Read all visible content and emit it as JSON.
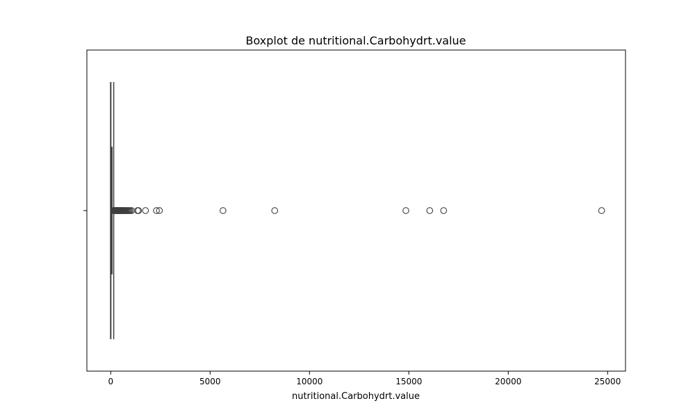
{
  "chart_data": {
    "type": "box",
    "orientation": "horizontal",
    "title": "Boxplot de nutritional.Carbohydrt.value",
    "xlabel": "nutritional.Carbohydrt.value",
    "ylabel": "",
    "xlim": [
      -1200,
      25900
    ],
    "xticks": [
      0,
      5000,
      10000,
      15000,
      20000,
      25000
    ],
    "grid": false,
    "box": {
      "min": 0,
      "q1": 8,
      "median": 25,
      "q3": 65,
      "whisker_high": 150
    },
    "outliers": [
      155,
      170,
      190,
      210,
      230,
      250,
      270,
      290,
      310,
      330,
      350,
      370,
      390,
      410,
      430,
      450,
      470,
      490,
      510,
      530,
      560,
      590,
      620,
      650,
      680,
      710,
      750,
      790,
      830,
      880,
      930,
      980,
      1050,
      1350,
      1400,
      1750,
      2300,
      2450,
      5650,
      8250,
      14850,
      16050,
      16750,
      24700
    ]
  }
}
